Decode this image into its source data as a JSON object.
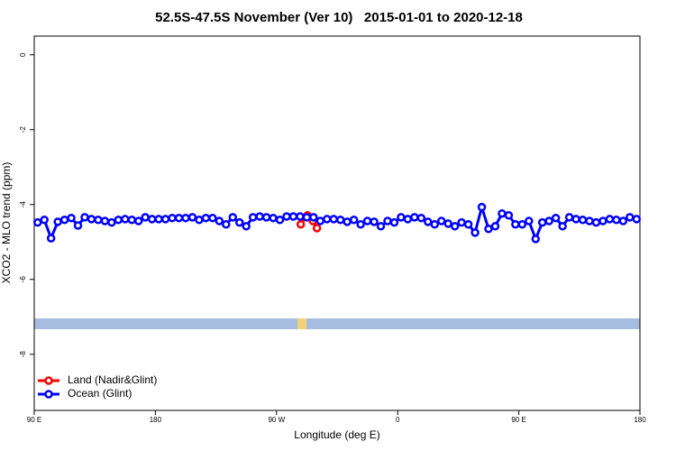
{
  "chart_data": {
    "type": "line",
    "title": "52.5S-47.5S November (Ver 10)   2015-01-01 to 2020-12-18",
    "x_label": "Longitude (deg E)",
    "y_label": "XCO2 - MLO trend (ppm)",
    "xlim": [
      90,
      540
    ],
    "ylim": [
      -9.5,
      0.5
    ],
    "xticks": [
      {
        "value": 90,
        "label": "90 E"
      },
      180,
      {
        "value": 270,
        "label": "90 W"
      },
      {
        "value": 360,
        "label": "0"
      },
      {
        "value": 450,
        "label": "90 E"
      },
      {
        "value": 540,
        "label": "180"
      }
    ],
    "yticks": [
      0,
      -2,
      -4,
      -6,
      -8
    ],
    "legend": "bottom-left",
    "series": [
      {
        "name": "Land (Nadir&Glint)",
        "color": "#ff0000",
        "x": [
          288,
          293,
          297,
          300
        ],
        "values": [
          -4.53,
          -4.29,
          -4.44,
          -4.63
        ]
      },
      {
        "name": "Ocean (Glint)",
        "color": "#0000ff",
        "x": [
          92.5,
          97.5,
          102.5,
          107.5,
          112.5,
          117.5,
          122.5,
          127.5,
          132.5,
          137.5,
          142.5,
          147.5,
          152.5,
          157.5,
          162.5,
          167.5,
          172.5,
          177.5,
          182.5,
          187.5,
          192.5,
          197.5,
          202.5,
          207.5,
          212.5,
          217.5,
          222.5,
          227.5,
          232.5,
          237.5,
          242.5,
          247.5,
          252.5,
          257.5,
          262.5,
          267.5,
          272.5,
          277.5,
          282.5,
          287.5,
          292.5,
          297.5,
          302.5,
          307.5,
          312.5,
          317.5,
          322.5,
          327.5,
          332.5,
          337.5,
          342.5,
          347.5,
          352.5,
          357.5,
          362.5,
          367.5,
          372.5,
          377.5,
          382.5,
          387.5,
          392.5,
          397.5,
          402.5,
          407.5,
          412.5,
          417.5,
          422.5,
          427.5,
          432.5,
          437.5,
          442.5,
          447.5,
          452.5,
          457.5,
          462.5,
          467.5,
          472.5,
          477.5,
          482.5,
          487.5,
          492.5,
          497.5,
          502.5,
          507.5,
          512.5,
          517.5,
          522.5,
          527.5,
          532.5,
          537.5
        ],
        "values": [
          -4.48,
          -4.41,
          -4.9,
          -4.46,
          -4.41,
          -4.36,
          -4.56,
          -4.34,
          -4.39,
          -4.41,
          -4.44,
          -4.48,
          -4.41,
          -4.39,
          -4.41,
          -4.44,
          -4.34,
          -4.39,
          -4.39,
          -4.39,
          -4.36,
          -4.36,
          -4.36,
          -4.34,
          -4.41,
          -4.36,
          -4.36,
          -4.44,
          -4.53,
          -4.34,
          -4.48,
          -4.58,
          -4.34,
          -4.32,
          -4.34,
          -4.36,
          -4.41,
          -4.32,
          -4.32,
          -4.32,
          -4.34,
          -4.34,
          -4.44,
          -4.39,
          -4.39,
          -4.41,
          -4.46,
          -4.41,
          -4.53,
          -4.44,
          -4.46,
          -4.58,
          -4.44,
          -4.48,
          -4.34,
          -4.39,
          -4.34,
          -4.36,
          -4.46,
          -4.53,
          -4.44,
          -4.51,
          -4.58,
          -4.48,
          -4.53,
          -4.75,
          -4.07,
          -4.65,
          -4.58,
          -4.24,
          -4.29,
          -4.53,
          -4.53,
          -4.44,
          -4.92,
          -4.48,
          -4.44,
          -4.36,
          -4.58,
          -4.34,
          -4.39,
          -4.41,
          -4.44,
          -4.48,
          -4.44,
          -4.39,
          -4.41,
          -4.44,
          -4.34,
          -4.39
        ]
      }
    ]
  }
}
